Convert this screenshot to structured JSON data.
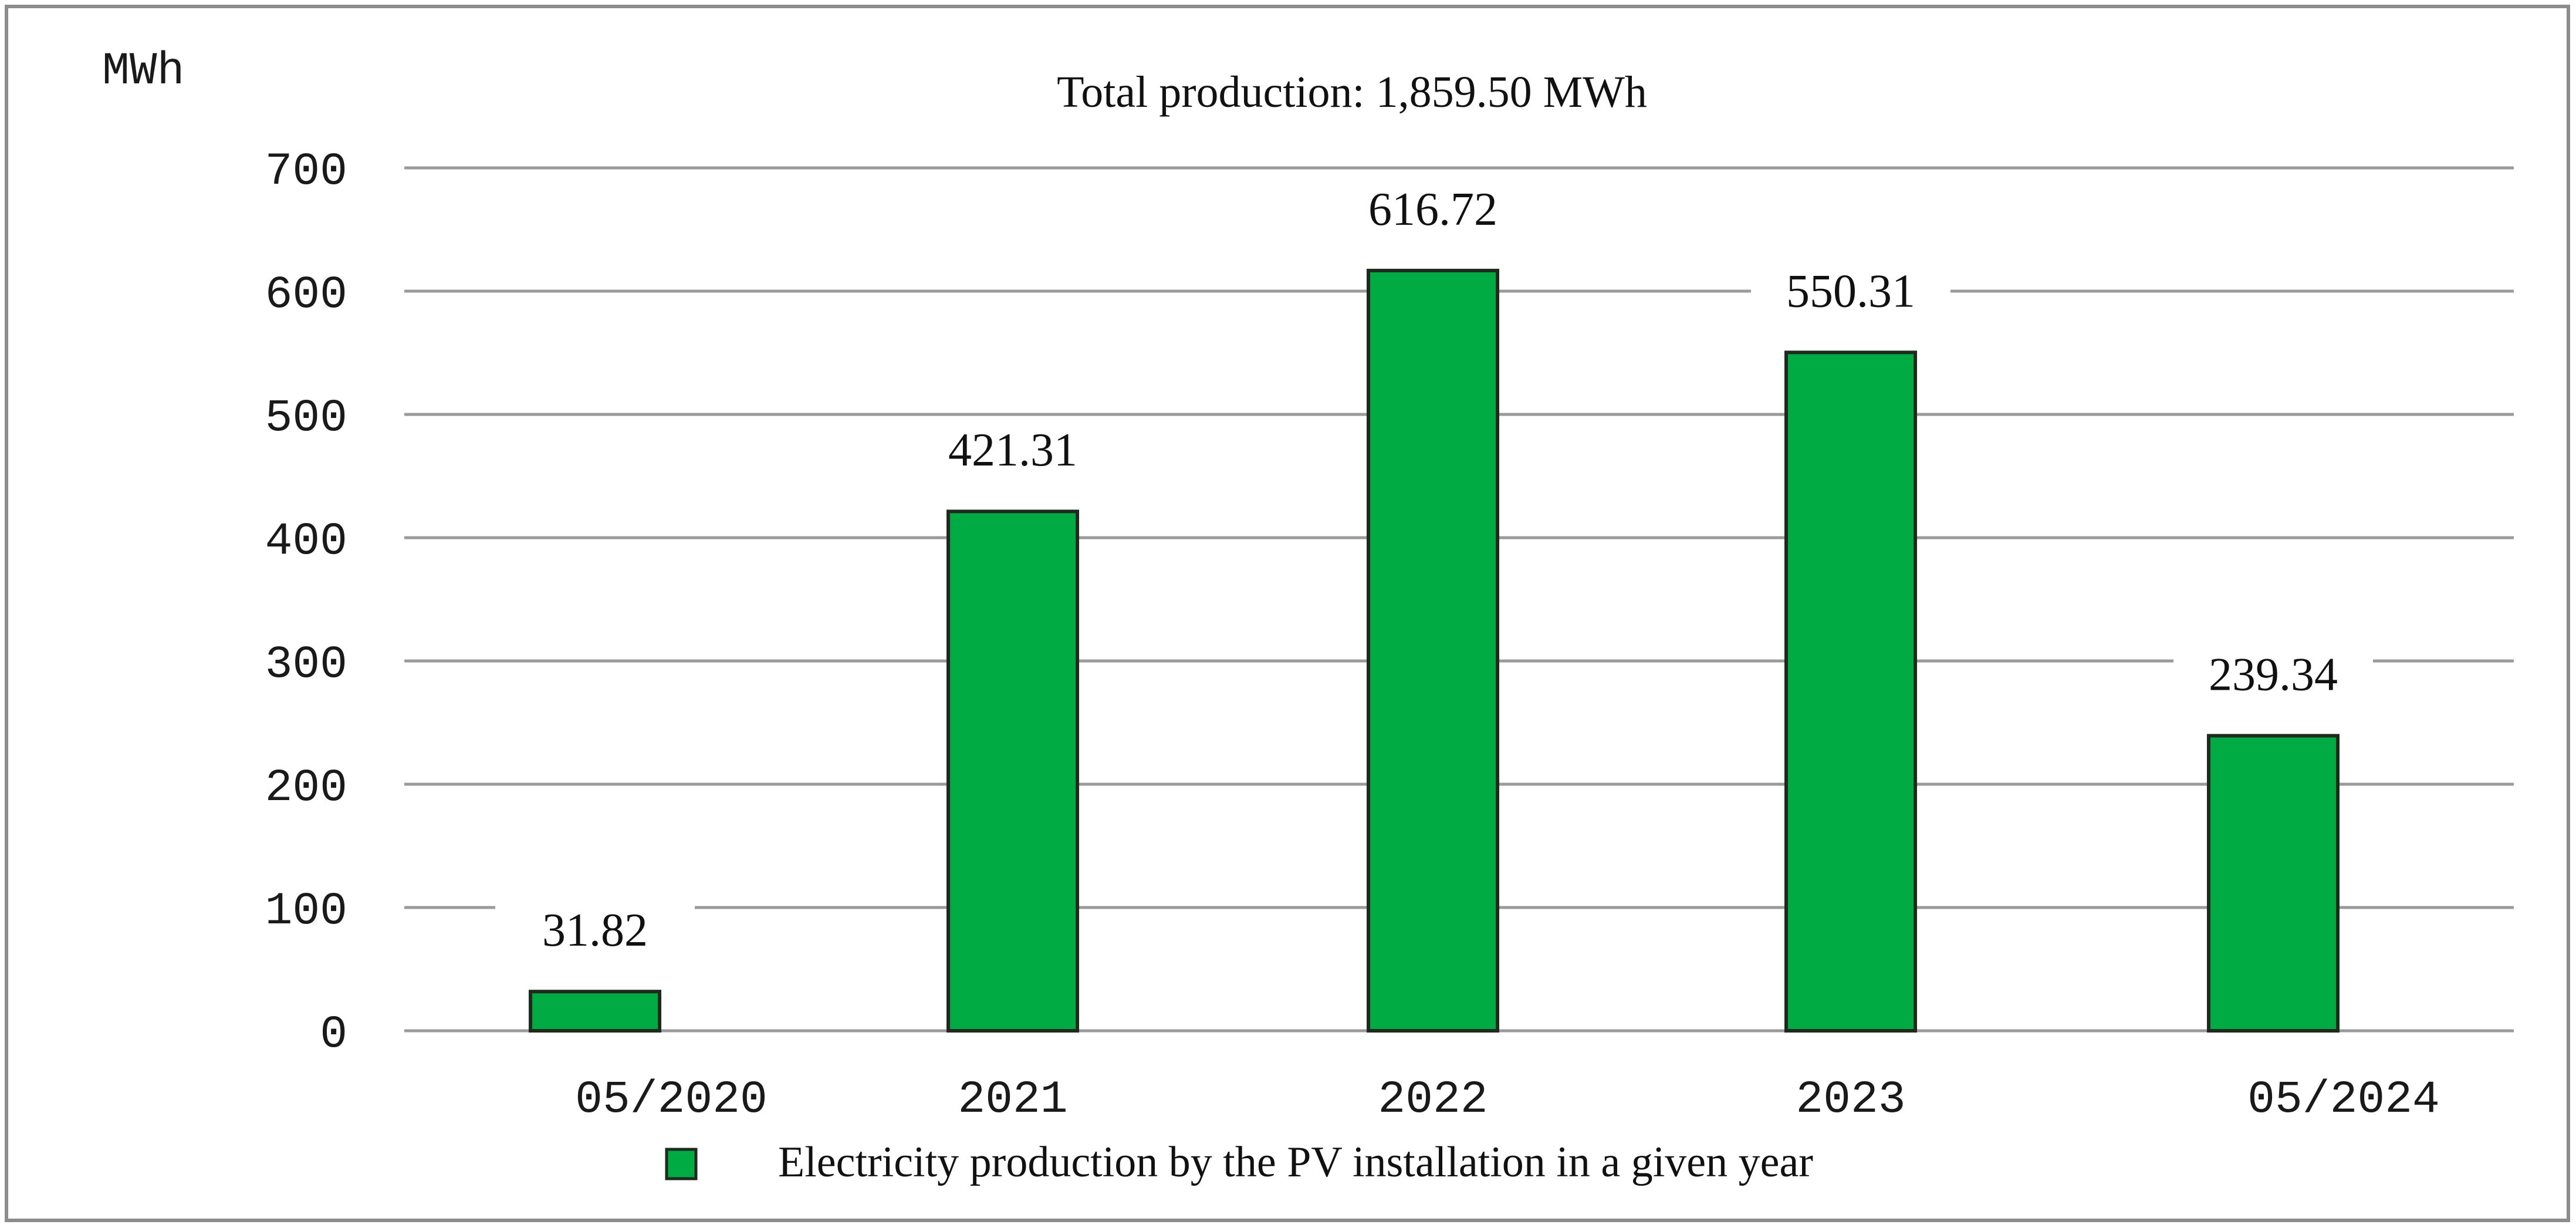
{
  "chart_data": {
    "type": "bar",
    "title": "Total production:  1,859.50 MWh",
    "ylabel": "MWh",
    "xlabel": "",
    "categories": [
      "05/2020",
      "2021",
      "2022",
      "2023",
      "05/2024"
    ],
    "series": [
      {
        "name": "Electricity production by the PV installation in a given year",
        "values": [
          31.82,
          421.31,
          616.72,
          550.31,
          239.34
        ],
        "value_labels": [
          "31.82",
          "421.31",
          "616.72",
          "550.31",
          "239.34"
        ],
        "color": "#00ab44"
      }
    ],
    "ylim": [
      0,
      700
    ],
    "yticks": [
      0,
      100,
      200,
      300,
      400,
      500,
      600,
      700
    ],
    "grid": true,
    "legend_position": "bottom"
  }
}
